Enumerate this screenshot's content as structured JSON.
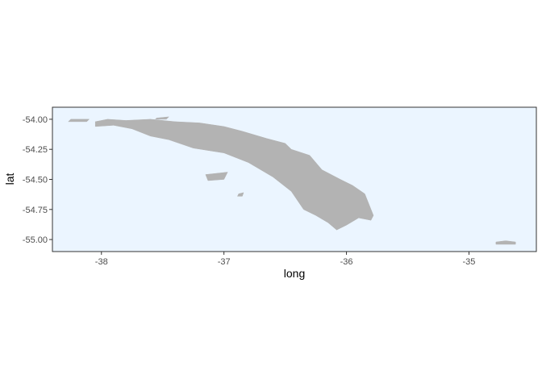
{
  "chart_data": {
    "type": "map",
    "xlabel": "long",
    "ylabel": "lat",
    "xlim": [
      -38.4,
      -34.45
    ],
    "ylim": [
      -55.1,
      -53.9
    ],
    "x_ticks": [
      {
        "value": -38,
        "label": "-38"
      },
      {
        "value": -37,
        "label": "-37"
      },
      {
        "value": -36,
        "label": "-36"
      },
      {
        "value": -35,
        "label": "-35"
      }
    ],
    "y_ticks": [
      {
        "value": -54.0,
        "label": "-54.00"
      },
      {
        "value": -54.25,
        "label": "-54.25"
      },
      {
        "value": -54.5,
        "label": "-54.50"
      },
      {
        "value": -54.75,
        "label": "-54.75"
      },
      {
        "value": -55.0,
        "label": "-55.00"
      }
    ],
    "grid": false,
    "colors": {
      "panel_fill": "#ebf5ff",
      "panel_border": "#333333",
      "land_fill": "#b3b3b3",
      "tick_color": "#333333"
    },
    "polygons": [
      {
        "name": "main-island",
        "lon": [
          -38.05,
          -37.95,
          -37.8,
          -37.6,
          -37.4,
          -37.2,
          -37.0,
          -36.85,
          -36.65,
          -36.5,
          -36.45,
          -36.3,
          -36.2,
          -36.05,
          -35.95,
          -35.85,
          -35.78,
          -35.8,
          -35.9,
          -36.0,
          -36.08,
          -36.15,
          -36.25,
          -36.35,
          -36.45,
          -36.6,
          -36.8,
          -37.0,
          -37.25,
          -37.45,
          -37.6,
          -37.75,
          -37.9,
          -38.05
        ],
        "lat": [
          -54.02,
          -54.0,
          -54.01,
          -54.0,
          -54.02,
          -54.03,
          -54.06,
          -54.1,
          -54.16,
          -54.2,
          -54.25,
          -54.3,
          -54.42,
          -54.5,
          -54.55,
          -54.62,
          -54.8,
          -54.84,
          -54.82,
          -54.88,
          -54.92,
          -54.86,
          -54.8,
          -54.75,
          -54.6,
          -54.48,
          -54.36,
          -54.28,
          -54.24,
          -54.17,
          -54.14,
          -54.08,
          -54.05,
          -54.06
        ]
      },
      {
        "name": "bird-island",
        "lon": [
          -38.25,
          -38.1,
          -38.12,
          -38.27
        ],
        "lat": [
          -54.0,
          -54.0,
          -54.02,
          -54.02
        ]
      },
      {
        "name": "willis-islands",
        "lon": [
          -37.55,
          -37.45,
          -37.47,
          -37.56
        ],
        "lat": [
          -53.99,
          -53.98,
          -54.0,
          -54.0
        ]
      },
      {
        "name": "annenkov-island",
        "lon": [
          -37.15,
          -36.97,
          -37.0,
          -37.13
        ],
        "lat": [
          -54.46,
          -54.44,
          -54.5,
          -54.51
        ]
      },
      {
        "name": "pickersgill-islands",
        "lon": [
          -36.88,
          -36.84,
          -36.85,
          -36.89
        ],
        "lat": [
          -54.62,
          -54.61,
          -54.64,
          -54.64
        ]
      },
      {
        "name": "clerke-rocks",
        "lon": [
          -34.78,
          -34.7,
          -34.62,
          -34.62,
          -34.78
        ],
        "lat": [
          -55.02,
          -55.01,
          -55.02,
          -55.04,
          -55.04
        ]
      }
    ]
  }
}
